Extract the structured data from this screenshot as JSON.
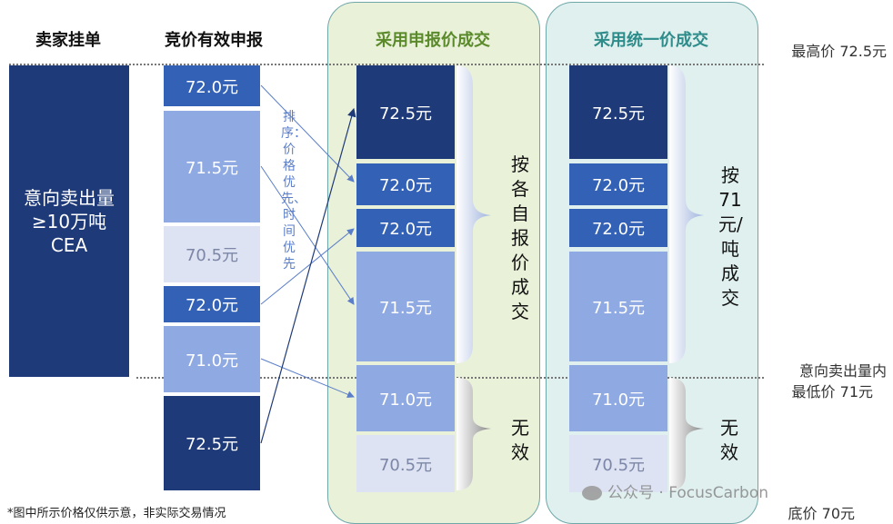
{
  "headers": {
    "seller": "卖家挂单",
    "bids": "竞价有效申报",
    "reported": "采用申报价成交",
    "uniform": "采用统一价成交"
  },
  "seller_box": {
    "line1": "意向卖出量",
    "line2": "≥10万吨",
    "line3": "CEA"
  },
  "bids": [
    "72.0元",
    "71.5元",
    "70.5元",
    "72.0元",
    "71.0元",
    "72.5元"
  ],
  "sort_note": "排序：价格优先、时间优先",
  "reported_column": [
    "72.5元",
    "72.0元",
    "72.0元",
    "71.5元",
    "71.0元",
    "70.5元"
  ],
  "uniform_column": [
    "72.5元",
    "72.0元",
    "72.0元",
    "71.5元",
    "71.0元",
    "70.5元"
  ],
  "reported_valid_label": "按各自报价成交",
  "uniform_valid_label": "按71元/吨成交",
  "invalid_label": "无效",
  "right_labels": {
    "highest": "最高价 72.5元",
    "min_line1": "意向卖出量内",
    "min_line2": "最低价 71元",
    "floor": "底价 70元"
  },
  "footnote": "*图中所示价格仅供示意，非实际交易情况",
  "watermark": "公众号 · FocusCarbon",
  "colors": {
    "dark": "#1f3a78",
    "mid": "#3361b6",
    "light": "#8fa9e2",
    "pale": "#dde3f3",
    "panel_green": "#e9f1d9",
    "panel_cyan": "#dff0ef"
  }
}
